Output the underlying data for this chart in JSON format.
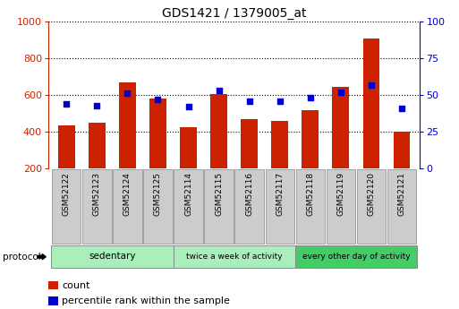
{
  "title": "GDS1421 / 1379005_at",
  "samples": [
    "GSM52122",
    "GSM52123",
    "GSM52124",
    "GSM52125",
    "GSM52114",
    "GSM52115",
    "GSM52116",
    "GSM52117",
    "GSM52118",
    "GSM52119",
    "GSM52120",
    "GSM52121"
  ],
  "counts": [
    435,
    448,
    668,
    580,
    425,
    607,
    467,
    460,
    515,
    643,
    910,
    398
  ],
  "percentiles": [
    44,
    43,
    51,
    47,
    42,
    53,
    46,
    46,
    48,
    52,
    57,
    41
  ],
  "groups": [
    {
      "label": "sedentary",
      "start": 0,
      "end": 4,
      "color": "#aaeebb"
    },
    {
      "label": "twice a week of activity",
      "start": 4,
      "end": 8,
      "color": "#aaeebb"
    },
    {
      "label": "every other day of activity",
      "start": 8,
      "end": 12,
      "color": "#44cc66"
    }
  ],
  "ylim_left": [
    200,
    1000
  ],
  "ylim_right": [
    0,
    100
  ],
  "yticks_left": [
    200,
    400,
    600,
    800,
    1000
  ],
  "yticks_right": [
    0,
    25,
    50,
    75,
    100
  ],
  "bar_color": "#cc2200",
  "dot_color": "#0000cc",
  "bar_bottom": 200,
  "grid_color": "#000000",
  "axis_left_color": "#cc2200",
  "axis_right_color": "#0000cc",
  "legend_count_label": "count",
  "legend_pct_label": "percentile rank within the sample",
  "protocol_label": "protocol",
  "group_border_color": "#888888",
  "sample_bg_color": "#cccccc"
}
